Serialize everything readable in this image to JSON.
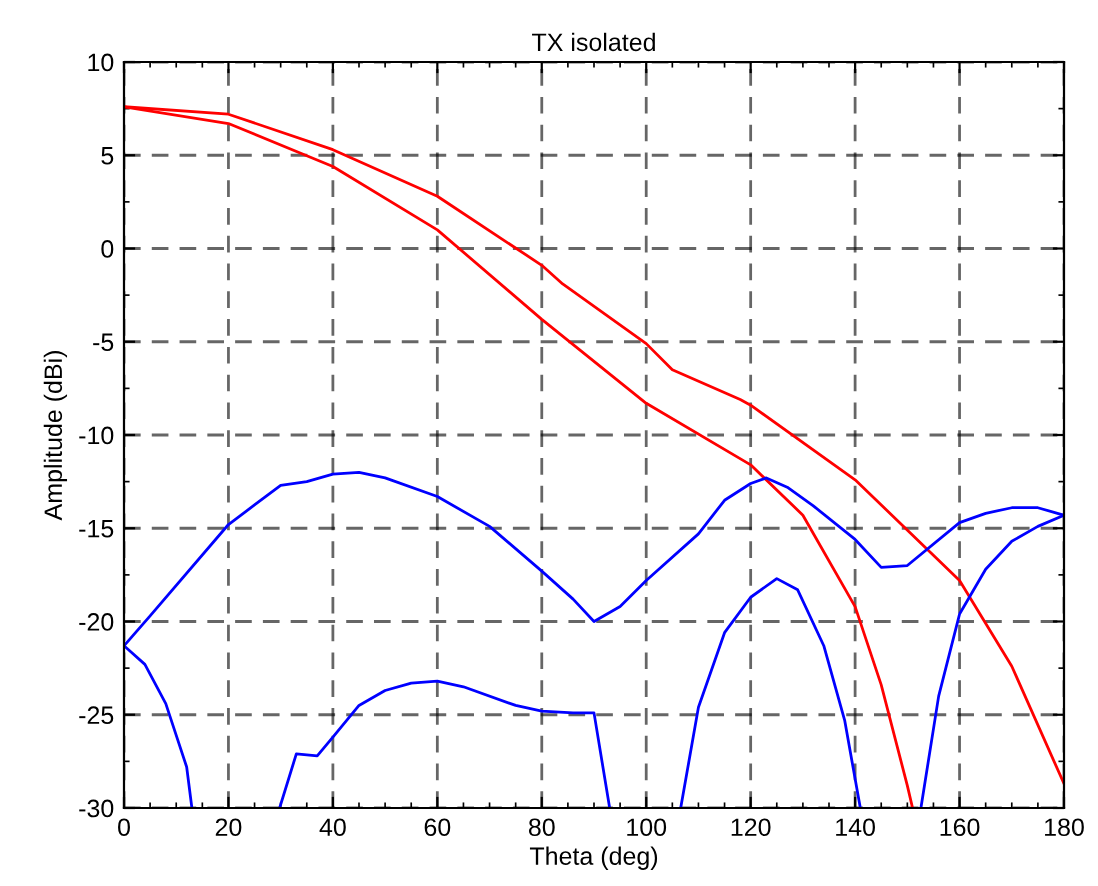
{
  "chart_data": {
    "type": "line",
    "title": "TX isolated",
    "xlabel": "Theta (deg)",
    "ylabel": "Amplitude (dBi)",
    "xlim": [
      0,
      180
    ],
    "ylim": [
      -30,
      10
    ],
    "xticks": [
      0,
      20,
      40,
      60,
      80,
      100,
      120,
      140,
      160,
      180
    ],
    "yticks": [
      -30,
      -25,
      -20,
      -15,
      -10,
      -5,
      0,
      5,
      10
    ],
    "grid": true,
    "line_style": "solid",
    "marker": "none",
    "series": [
      {
        "color": "#ff0000",
        "x": [
          0,
          20,
          40,
          60,
          80,
          84,
          100,
          105,
          118,
          120,
          140,
          160,
          170,
          180
        ],
        "values": [
          7.6,
          7.2,
          5.3,
          2.8,
          -0.9,
          -1.9,
          -5.1,
          -6.5,
          -8.1,
          -8.4,
          -12.4,
          -17.8,
          -22.4,
          -28.7
        ]
      },
      {
        "color": "#ff0000",
        "x": [
          0,
          20,
          40,
          60,
          80,
          100,
          120,
          130,
          140,
          145,
          150,
          151
        ],
        "values": [
          7.6,
          6.7,
          4.4,
          1.0,
          -3.8,
          -8.3,
          -11.6,
          -14.3,
          -19.2,
          -23.4,
          -28.8,
          -30
        ]
      },
      {
        "color": "#0000ff",
        "x": [
          0,
          5,
          20,
          30,
          35,
          40,
          45,
          50,
          60,
          70,
          80,
          86,
          90,
          95,
          100,
          110,
          115,
          120,
          123,
          127,
          132,
          140,
          145,
          150,
          160,
          165,
          170,
          175,
          180
        ],
        "values": [
          -21.3,
          -19.7,
          -14.8,
          -12.7,
          -12.5,
          -12.1,
          -12.0,
          -12.3,
          -13.3,
          -14.9,
          -17.3,
          -18.8,
          -20.0,
          -19.2,
          -17.8,
          -15.3,
          -13.5,
          -12.6,
          -12.3,
          -12.8,
          -13.8,
          -15.6,
          -17.1,
          -17.0,
          -14.7,
          -14.2,
          -13.9,
          -13.9,
          -14.3
        ]
      },
      {
        "color": "#0000ff",
        "x": [
          0,
          4,
          8,
          12,
          13,
          21,
          29.8,
          33,
          37,
          40,
          45,
          50,
          55,
          60,
          65,
          75,
          80,
          86,
          90,
          93,
          100,
          106.6,
          110,
          115,
          120,
          125,
          129,
          134,
          138,
          141,
          147,
          152.6,
          156,
          160,
          165,
          170,
          175,
          180
        ],
        "values": [
          -21.3,
          -22.3,
          -24.4,
          -27.8,
          -30,
          null,
          -30,
          -27.1,
          -27.2,
          -26.2,
          -24.5,
          -23.7,
          -23.3,
          -23.2,
          -23.5,
          -24.5,
          -24.8,
          -24.9,
          -24.9,
          -30,
          null,
          -30,
          -24.6,
          -20.6,
          -18.7,
          -17.7,
          -18.3,
          -21.3,
          -25.3,
          -30,
          null,
          -30,
          -24.0,
          -19.6,
          -17.2,
          -15.7,
          -14.9,
          -14.3
        ]
      }
    ]
  }
}
